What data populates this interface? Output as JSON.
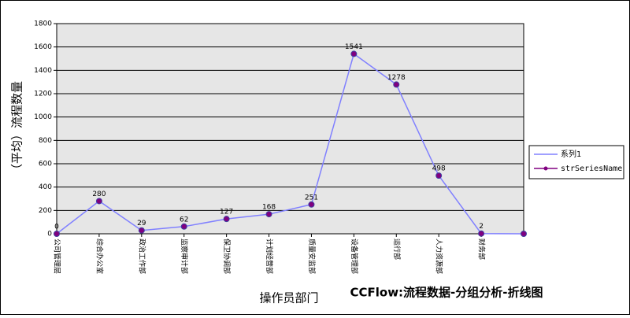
{
  "chart_data": {
    "type": "line",
    "title": "CCFlow:流程数据-分组分析-折线图",
    "x_label": "操作员部门",
    "y_label": "（平均）流程数量",
    "categories": [
      "公司管理层",
      "综合办公室",
      "政治工作部",
      "监察审计部",
      "保卫协调部",
      "计划经营部",
      "质量安监部",
      "设备管理部",
      "运行部",
      "人力资源部",
      "财务部",
      null
    ],
    "series": [
      {
        "name": "系列1",
        "color": "#8080ff",
        "values": [
          0,
          280,
          29,
          62,
          127,
          168,
          251,
          1541,
          1278,
          498,
          2,
          0
        ],
        "value_labels": [
          "0",
          "280",
          "29",
          "62",
          "127",
          "168",
          "251",
          "1541",
          "1278",
          "498",
          "2",
          null
        ]
      },
      {
        "name": "strSeriesName",
        "color": "#800080",
        "values": [
          0,
          280,
          29,
          62,
          127,
          168,
          251,
          1541,
          1278,
          498,
          2,
          0
        ]
      }
    ],
    "ylim": [
      0,
      1800
    ],
    "yticks": [
      0,
      200,
      400,
      600,
      800,
      1000,
      1200,
      1400,
      1600,
      1800
    ],
    "grid": true,
    "legend": "right"
  }
}
